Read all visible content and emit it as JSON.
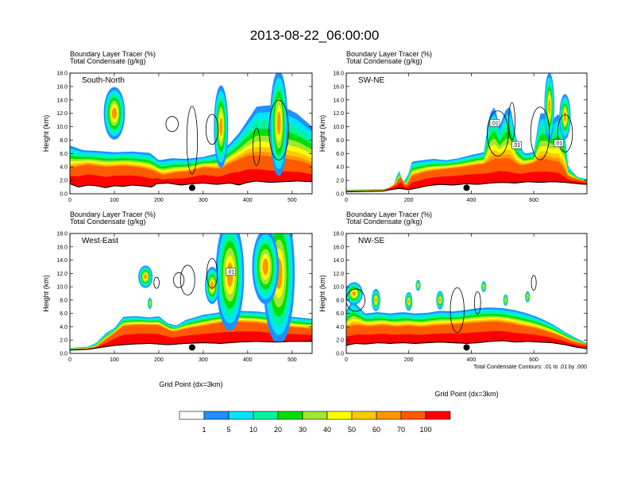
{
  "title": "2013-08-22_06:00:00",
  "footnote": "Total Condensate Contours: .01 to .01 by .000",
  "legend": {
    "levels": [
      "1",
      "5",
      "10",
      "20",
      "30",
      "40",
      "50",
      "60",
      "70",
      "100"
    ],
    "colors": [
      "#ffffff",
      "#1e90ff",
      "#00e4ff",
      "#00f4a0",
      "#00e000",
      "#a0e632",
      "#ffff00",
      "#ffc800",
      "#ff9600",
      "#ff5a00",
      "#ff0000"
    ]
  },
  "chart_data": [
    {
      "type": "heatmap",
      "id": "sn",
      "panel_label": "South-North",
      "subtitle_1": "Boundary Layer Tracer   (%)",
      "subtitle_2": "Total Condensate   (g/kg)",
      "ylabel": "Height (km)",
      "xlabel": "",
      "xlim": [
        0,
        545
      ],
      "ylim": [
        0,
        18
      ],
      "xticks": [
        "0",
        "100",
        "200",
        "300",
        "400",
        "500"
      ],
      "yticks": [
        "0.0",
        "2.0",
        "4.0",
        "6.0",
        "8.0",
        "10.0",
        "12.0",
        "14.0",
        "16.0",
        "18.0"
      ],
      "marker_x": 275,
      "contour_labels": [],
      "terrain": [
        [
          0,
          1.5
        ],
        [
          20,
          1.0
        ],
        [
          40,
          1.3
        ],
        [
          60,
          1.2
        ],
        [
          80,
          0.9
        ],
        [
          100,
          1.2
        ],
        [
          120,
          1.1
        ],
        [
          140,
          1.3
        ],
        [
          160,
          1.2
        ],
        [
          185,
          1.0
        ],
        [
          195,
          1.5
        ],
        [
          220,
          1.6
        ],
        [
          250,
          1.3
        ],
        [
          275,
          1.5
        ],
        [
          300,
          1.6
        ],
        [
          330,
          1.4
        ],
        [
          360,
          1.6
        ],
        [
          380,
          1.3
        ],
        [
          400,
          1.7
        ],
        [
          420,
          1.9
        ],
        [
          450,
          1.7
        ],
        [
          480,
          1.8
        ],
        [
          510,
          1.9
        ],
        [
          545,
          1.8
        ]
      ],
      "plume_top": [
        [
          0,
          7.2
        ],
        [
          30,
          6.5
        ],
        [
          60,
          6.4
        ],
        [
          100,
          6.2
        ],
        [
          140,
          6.3
        ],
        [
          180,
          6.1
        ],
        [
          200,
          5.0
        ],
        [
          230,
          5.3
        ],
        [
          260,
          5.2
        ],
        [
          300,
          5.5
        ],
        [
          330,
          6.0
        ],
        [
          360,
          7.5
        ],
        [
          380,
          9.0
        ],
        [
          400,
          11.0
        ],
        [
          420,
          13.0
        ],
        [
          450,
          13.2
        ],
        [
          480,
          13.0
        ],
        [
          510,
          12.0
        ],
        [
          545,
          10.0
        ]
      ],
      "red_top": [
        [
          0,
          3.6
        ],
        [
          40,
          4.2
        ],
        [
          80,
          3.8
        ],
        [
          120,
          4.0
        ],
        [
          160,
          3.7
        ],
        [
          190,
          3.2
        ],
        [
          210,
          2.6
        ],
        [
          240,
          3.0
        ],
        [
          270,
          3.2
        ],
        [
          300,
          3.8
        ],
        [
          340,
          3.5
        ],
        [
          360,
          4.3
        ],
        [
          380,
          4.8
        ],
        [
          400,
          5.2
        ],
        [
          440,
          5.0
        ],
        [
          480,
          4.6
        ],
        [
          520,
          4.3
        ],
        [
          545,
          3.8
        ]
      ],
      "blobs": [
        [
          100,
          12.0,
          14,
          24
        ],
        [
          340,
          10.0,
          22,
          16
        ],
        [
          470,
          10.5,
          28,
          20
        ]
      ],
      "contours": [
        [
          230,
          10.4,
          4,
          14
        ],
        [
          275,
          8.0,
          18,
          12
        ],
        [
          320,
          9.6,
          8,
          14
        ],
        [
          470,
          9.5,
          16,
          22
        ],
        [
          420,
          7.0,
          10,
          8
        ]
      ]
    },
    {
      "type": "heatmap",
      "id": "swne",
      "panel_label": "SW-NE",
      "subtitle_1": "Boundary Layer Tracer   (%)",
      "subtitle_2": "Total Condensate   (g/kg)",
      "ylabel": "Height (km)",
      "xlabel": "",
      "xlim": [
        0,
        770
      ],
      "ylim": [
        0,
        18
      ],
      "xticks": [
        "0",
        "200",
        "400",
        "600"
      ],
      "yticks": [
        "0.0",
        "2.0",
        "4.0",
        "6.0",
        "8.0",
        "10.0",
        "12.0",
        "14.0",
        "16.0",
        "18.0"
      ],
      "marker_x": 385,
      "contour_labels": [
        [
          475,
          10.5,
          ".01"
        ],
        [
          545,
          7.2,
          ".01"
        ],
        [
          680,
          7.5,
          ".01"
        ]
      ],
      "terrain": [
        [
          0,
          0.3
        ],
        [
          120,
          0.4
        ],
        [
          140,
          0.6
        ],
        [
          170,
          0.8
        ],
        [
          200,
          0.6
        ],
        [
          220,
          0.8
        ],
        [
          260,
          1.2
        ],
        [
          300,
          1.4
        ],
        [
          340,
          1.3
        ],
        [
          385,
          1.5
        ],
        [
          420,
          1.4
        ],
        [
          460,
          1.6
        ],
        [
          500,
          1.7
        ],
        [
          540,
          1.6
        ],
        [
          580,
          1.8
        ],
        [
          620,
          1.7
        ],
        [
          660,
          1.8
        ],
        [
          700,
          1.7
        ],
        [
          740,
          1.5
        ],
        [
          770,
          1.4
        ]
      ],
      "plume_top": [
        [
          0,
          0.6
        ],
        [
          120,
          0.7
        ],
        [
          150,
          1.0
        ],
        [
          160,
          2.5
        ],
        [
          170,
          3.5
        ],
        [
          180,
          1.5
        ],
        [
          200,
          3.0
        ],
        [
          210,
          4.8
        ],
        [
          240,
          5.0
        ],
        [
          280,
          5.2
        ],
        [
          320,
          5.0
        ],
        [
          360,
          5.3
        ],
        [
          400,
          5.8
        ],
        [
          440,
          6.2
        ],
        [
          460,
          12.0
        ],
        [
          475,
          13.0
        ],
        [
          490,
          10.0
        ],
        [
          510,
          12.5
        ],
        [
          525,
          13.0
        ],
        [
          545,
          8.0
        ],
        [
          570,
          6.0
        ],
        [
          600,
          6.2
        ],
        [
          620,
          12.0
        ],
        [
          640,
          12.0
        ],
        [
          660,
          11.0
        ],
        [
          680,
          12.0
        ],
        [
          700,
          9.0
        ],
        [
          710,
          4.0
        ],
        [
          740,
          2.5
        ],
        [
          770,
          2.2
        ]
      ],
      "red_top": [
        [
          0,
          0.4
        ],
        [
          120,
          0.5
        ],
        [
          160,
          1.5
        ],
        [
          175,
          2.6
        ],
        [
          190,
          1.0
        ],
        [
          210,
          2.5
        ],
        [
          260,
          3.2
        ],
        [
          320,
          3.6
        ],
        [
          380,
          3.9
        ],
        [
          420,
          4.2
        ],
        [
          460,
          4.3
        ],
        [
          490,
          4.8
        ],
        [
          520,
          4.6
        ],
        [
          560,
          4.0
        ],
        [
          600,
          4.5
        ],
        [
          640,
          4.6
        ],
        [
          680,
          4.2
        ],
        [
          710,
          2.5
        ],
        [
          770,
          1.8
        ]
      ],
      "blobs": [
        [
          650,
          13.0,
          18,
          16
        ],
        [
          700,
          11.5,
          12,
          18
        ]
      ],
      "contours": [
        [
          530,
          10.8,
          10,
          10
        ],
        [
          485,
          9.0,
          12,
          34
        ],
        [
          620,
          9.0,
          14,
          30
        ],
        [
          700,
          9.0,
          10,
          24
        ]
      ]
    },
    {
      "type": "heatmap",
      "id": "we",
      "panel_label": "West-East",
      "subtitle_1": "Boundary Layer Tracer   (%)",
      "subtitle_2": "Total Condensate   (g/kg)",
      "ylabel": "Height (km)",
      "xlabel": "Grid Point (dx=3km)",
      "xlim": [
        0,
        545
      ],
      "ylim": [
        0,
        18
      ],
      "xticks": [
        "0",
        "100",
        "200",
        "300",
        "400",
        "500"
      ],
      "yticks": [
        "0.0",
        "2.0",
        "4.0",
        "6.0",
        "8.0",
        "10.0",
        "12.0",
        "14.0",
        "16.0",
        "18.0"
      ],
      "marker_x": 275,
      "contour_labels": [
        [
          362,
          12.2,
          ".01"
        ]
      ],
      "terrain": [
        [
          0,
          0.5
        ],
        [
          40,
          0.6
        ],
        [
          60,
          0.8
        ],
        [
          80,
          1.0
        ],
        [
          100,
          1.2
        ],
        [
          140,
          1.4
        ],
        [
          180,
          1.5
        ],
        [
          220,
          1.3
        ],
        [
          260,
          1.5
        ],
        [
          300,
          1.6
        ],
        [
          340,
          1.5
        ],
        [
          380,
          1.7
        ],
        [
          420,
          1.8
        ],
        [
          460,
          1.7
        ],
        [
          500,
          1.8
        ],
        [
          545,
          1.8
        ]
      ],
      "plume_top": [
        [
          0,
          0.8
        ],
        [
          40,
          1.0
        ],
        [
          60,
          1.6
        ],
        [
          80,
          3.0
        ],
        [
          100,
          3.8
        ],
        [
          120,
          5.5
        ],
        [
          150,
          5.6
        ],
        [
          180,
          5.4
        ],
        [
          200,
          5.6
        ],
        [
          220,
          4.5
        ],
        [
          240,
          4.2
        ],
        [
          260,
          5.0
        ],
        [
          300,
          5.8
        ],
        [
          340,
          6.2
        ],
        [
          380,
          6.4
        ],
        [
          420,
          6.3
        ],
        [
          460,
          6.0
        ],
        [
          500,
          5.5
        ],
        [
          545,
          5.2
        ]
      ],
      "red_top": [
        [
          0,
          0.6
        ],
        [
          40,
          0.7
        ],
        [
          60,
          1.0
        ],
        [
          80,
          2.0
        ],
        [
          100,
          3.0
        ],
        [
          120,
          4.0
        ],
        [
          160,
          4.2
        ],
        [
          200,
          4.1
        ],
        [
          230,
          3.2
        ],
        [
          260,
          3.6
        ],
        [
          300,
          4.0
        ],
        [
          340,
          4.5
        ],
        [
          380,
          4.6
        ],
        [
          420,
          4.5
        ],
        [
          460,
          4.1
        ],
        [
          500,
          3.8
        ],
        [
          545,
          3.6
        ]
      ],
      "blobs": [
        [
          360,
          11.8,
          30,
          32
        ],
        [
          470,
          12.0,
          38,
          36
        ],
        [
          440,
          13.0,
          20,
          30
        ],
        [
          320,
          10.2,
          10,
          16
        ],
        [
          170,
          11.5,
          6,
          16
        ],
        [
          180,
          7.5,
          3,
          5
        ]
      ],
      "contours": [
        [
          245,
          11.0,
          4,
          12
        ],
        [
          195,
          10.6,
          3,
          6
        ],
        [
          265,
          11.0,
          8,
          16
        ],
        [
          320,
          12.0,
          8,
          12
        ]
      ]
    },
    {
      "type": "heatmap",
      "id": "nwse",
      "panel_label": "NW-SE",
      "subtitle_1": "Boundary Layer Tracer   (%)",
      "subtitle_2": "Total Condensate   (g/kg)",
      "ylabel": "Height (km)",
      "xlabel": "Grid Point (dx=3km)",
      "xlim": [
        0,
        770
      ],
      "ylim": [
        0,
        18
      ],
      "xticks": [
        "0",
        "200",
        "400",
        "600"
      ],
      "yticks": [
        "0.0",
        "2.0",
        "4.0",
        "6.0",
        "8.0",
        "10.0",
        "12.0",
        "14.0",
        "16.0",
        "18.0"
      ],
      "marker_x": 385,
      "contour_labels": [],
      "terrain": [
        [
          0,
          1.2
        ],
        [
          30,
          1.5
        ],
        [
          60,
          1.4
        ],
        [
          100,
          1.6
        ],
        [
          140,
          1.5
        ],
        [
          180,
          1.6
        ],
        [
          220,
          1.5
        ],
        [
          260,
          1.6
        ],
        [
          300,
          1.7
        ],
        [
          340,
          1.6
        ],
        [
          385,
          1.5
        ],
        [
          420,
          1.6
        ],
        [
          460,
          1.8
        ],
        [
          500,
          1.9
        ],
        [
          540,
          1.7
        ],
        [
          580,
          1.8
        ],
        [
          620,
          1.7
        ],
        [
          660,
          1.6
        ],
        [
          700,
          1.3
        ],
        [
          740,
          0.9
        ],
        [
          770,
          0.7
        ]
      ],
      "plume_top": [
        [
          0,
          6.4
        ],
        [
          20,
          8.0
        ],
        [
          40,
          7.0
        ],
        [
          60,
          6.0
        ],
        [
          100,
          6.2
        ],
        [
          140,
          6.0
        ],
        [
          180,
          6.2
        ],
        [
          220,
          6.0
        ],
        [
          260,
          6.1
        ],
        [
          300,
          6.4
        ],
        [
          340,
          6.3
        ],
        [
          380,
          6.5
        ],
        [
          420,
          6.8
        ],
        [
          460,
          6.9
        ],
        [
          500,
          6.8
        ],
        [
          540,
          6.5
        ],
        [
          580,
          6.0
        ],
        [
          620,
          5.3
        ],
        [
          660,
          4.4
        ],
        [
          700,
          3.2
        ],
        [
          740,
          2.2
        ],
        [
          770,
          1.5
        ]
      ],
      "red_top": [
        [
          0,
          3.6
        ],
        [
          40,
          4.0
        ],
        [
          80,
          3.9
        ],
        [
          120,
          4.1
        ],
        [
          160,
          3.8
        ],
        [
          200,
          4.0
        ],
        [
          240,
          3.8
        ],
        [
          280,
          4.0
        ],
        [
          320,
          4.1
        ],
        [
          360,
          4.2
        ],
        [
          400,
          4.4
        ],
        [
          440,
          4.5
        ],
        [
          480,
          4.6
        ],
        [
          520,
          4.4
        ],
        [
          560,
          4.0
        ],
        [
          600,
          3.7
        ],
        [
          640,
          3.2
        ],
        [
          680,
          2.6
        ],
        [
          720,
          1.8
        ],
        [
          770,
          1.3
        ]
      ],
      "blobs": [
        [
          25,
          9.0,
          6,
          28
        ],
        [
          95,
          8.0,
          6,
          14
        ],
        [
          200,
          7.8,
          5,
          12
        ],
        [
          300,
          8.0,
          5,
          12
        ],
        [
          230,
          10.2,
          3,
          8
        ],
        [
          440,
          10.0,
          3,
          8
        ],
        [
          510,
          8.0,
          3,
          8
        ],
        [
          580,
          8.5,
          3,
          8
        ]
      ],
      "contours": [
        [
          355,
          6.5,
          12,
          22
        ],
        [
          420,
          7.6,
          6,
          10
        ],
        [
          600,
          10.6,
          4,
          8
        ],
        [
          30,
          8.0,
          6,
          30
        ]
      ]
    }
  ]
}
